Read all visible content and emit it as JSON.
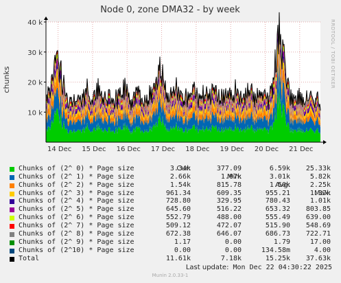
{
  "chart_data": {
    "type": "area",
    "title": "Node 0, zone DMA32 - by week",
    "ylabel": "chunks",
    "side_text": "RRDTOOL / TOBI OETIKER",
    "footer": "Munin 2.0.33-1",
    "ylim": [
      0,
      40000
    ],
    "y_ticks": [
      {
        "value": 10000,
        "label": "10 k"
      },
      {
        "value": 20000,
        "label": "20 k"
      },
      {
        "value": 30000,
        "label": "30 k"
      },
      {
        "value": 40000,
        "label": "40 k"
      }
    ],
    "x_ticks": [
      "14 Dec",
      "15 Dec",
      "16 Dec",
      "17 Dec",
      "18 Dec",
      "19 Dec",
      "20 Dec",
      "21 Dec"
    ],
    "total_profile_samples": [
      15500,
      18500,
      24000,
      28000,
      22000,
      16500,
      13500,
      14500,
      16000,
      13500,
      15500,
      17000,
      13500,
      15500,
      17500,
      14000,
      16000,
      17000,
      13500,
      15000,
      17500,
      18500,
      14500,
      13500,
      16000,
      17000,
      13500,
      15500,
      17500,
      19500,
      24000,
      21500,
      16500,
      14000,
      16500,
      18500,
      15000,
      13500,
      17000,
      18500,
      15000,
      14500,
      17000,
      14500,
      16000,
      17500,
      14500,
      15500,
      17500,
      14500,
      16500,
      17000,
      14000,
      16000,
      18000,
      15500,
      15500,
      15000,
      16500,
      14500,
      17000,
      25000,
      36500,
      32000,
      21000,
      16500,
      14500,
      16500,
      15500,
      13500,
      15500,
      14000,
      15000,
      13500
    ],
    "series": [
      {
        "name": "Chunks of (2^ 0) * Page size",
        "color": "#00cc00",
        "fraction": 0.25
      },
      {
        "name": "Chunks of (2^ 1) * Page size",
        "color": "#0066b3",
        "fraction": 0.185
      },
      {
        "name": "Chunks of (2^ 2) * Page size",
        "color": "#ff8000",
        "fraction": 0.105
      },
      {
        "name": "Chunks of (2^ 3) * Page size",
        "color": "#ffcc00",
        "fraction": 0.065
      },
      {
        "name": "Chunks of (2^ 4) * Page size",
        "color": "#330099",
        "fraction": 0.05
      },
      {
        "name": "Chunks of (2^ 5) * Page size",
        "color": "#990099",
        "fraction": 0.045
      },
      {
        "name": "Chunks of (2^ 6) * Page size",
        "color": "#ccff00",
        "fraction": 0.04
      },
      {
        "name": "Chunks of (2^ 7) * Page size",
        "color": "#ff0000",
        "fraction": 0.035
      },
      {
        "name": "Chunks of (2^ 8) * Page size",
        "color": "#808080",
        "fraction": 0.045
      },
      {
        "name": "Chunks of (2^ 9) * Page size",
        "color": "#008f00",
        "fraction": 0.0
      },
      {
        "name": "Chunks of (2^10) * Page size",
        "color": "#00487d",
        "fraction": 0.0
      }
    ],
    "total_line_color": "#000000"
  },
  "legend": {
    "headers": {
      "cur": "Cur:",
      "min": "Min:",
      "avg": "Avg:",
      "max": "Max:"
    },
    "rows": [
      {
        "name": "Chunks of (2^ 0) * Page size",
        "color": "#00cc00",
        "cur": "3.34k",
        "min": "377.09",
        "avg": "6.59k",
        "max": "25.33k"
      },
      {
        "name": "Chunks of (2^ 1) * Page size",
        "color": "#0066b3",
        "cur": "2.66k",
        "min": "1.07k",
        "avg": "3.01k",
        "max": "5.82k"
      },
      {
        "name": "Chunks of (2^ 2) * Page size",
        "color": "#ff8000",
        "cur": "1.54k",
        "min": "815.78",
        "avg": "1.50k",
        "max": "2.25k"
      },
      {
        "name": "Chunks of (2^ 3) * Page size",
        "color": "#ffcc00",
        "cur": "961.34",
        "min": "609.35",
        "avg": "955.21",
        "max": "1.37k"
      },
      {
        "name": "Chunks of (2^ 4) * Page size",
        "color": "#330099",
        "cur": "728.80",
        "min": "329.95",
        "avg": "780.43",
        "max": "1.01k"
      },
      {
        "name": "Chunks of (2^ 5) * Page size",
        "color": "#990099",
        "cur": "645.60",
        "min": "516.22",
        "avg": "653.32",
        "max": "803.85"
      },
      {
        "name": "Chunks of (2^ 6) * Page size",
        "color": "#ccff00",
        "cur": "552.79",
        "min": "488.00",
        "avg": "555.49",
        "max": "639.00"
      },
      {
        "name": "Chunks of (2^ 7) * Page size",
        "color": "#ff0000",
        "cur": "509.12",
        "min": "472.07",
        "avg": "515.90",
        "max": "548.69"
      },
      {
        "name": "Chunks of (2^ 8) * Page size",
        "color": "#808080",
        "cur": "672.38",
        "min": "646.07",
        "avg": "686.73",
        "max": "722.71"
      },
      {
        "name": "Chunks of (2^ 9) * Page size",
        "color": "#008f00",
        "cur": "1.17",
        "min": "0.00",
        "avg": "1.79",
        "max": "17.00"
      },
      {
        "name": "Chunks of (2^10) * Page size",
        "color": "#00487d",
        "cur": "0.00",
        "min": "0.00",
        "avg": "134.58m",
        "max": "4.00"
      },
      {
        "name": "Total",
        "color": "#000000",
        "cur": "11.61k",
        "min": "7.18k",
        "avg": "15.25k",
        "max": "37.63k"
      }
    ],
    "last_update_label": "Last update:",
    "last_update_value": "Mon Dec 22 04:30:22 2025"
  }
}
